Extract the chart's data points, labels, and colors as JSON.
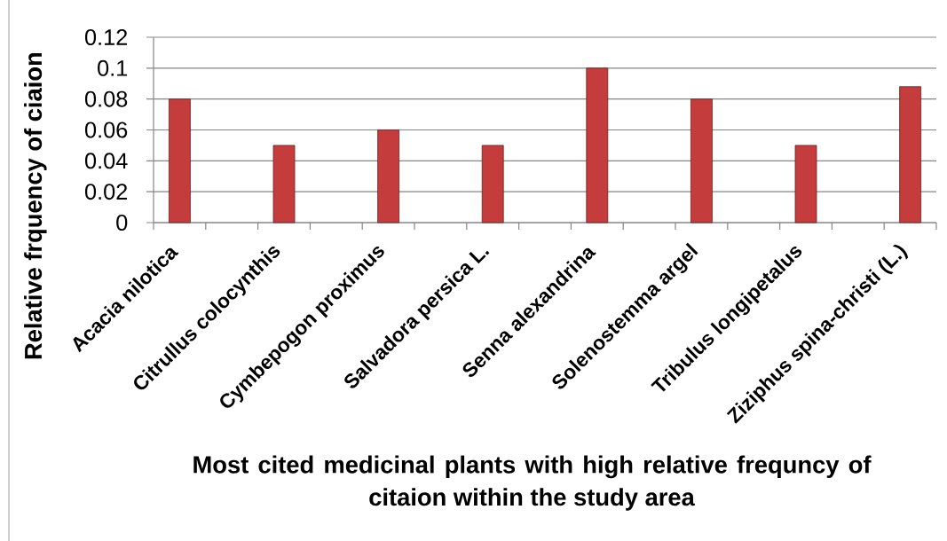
{
  "chart_data": {
    "type": "bar",
    "xlabel": "Most cited medicinal plants with high relative frequncy of citaion within the study area",
    "ylabel": "Relative frquency of ciaion",
    "categories": [
      "Acacia nilotica",
      null,
      "Citrullus colocynthis",
      null,
      "Cymbepogon proximus",
      null,
      "Salvadora persica L.",
      null,
      "Senna alexandrina",
      null,
      "Solenostemma argel",
      null,
      "Tribulus longipetalus",
      null,
      "Ziziphus spina-christi (L.)"
    ],
    "values": [
      0.08,
      null,
      0.05,
      null,
      0.06,
      null,
      0.05,
      null,
      0.1,
      null,
      0.08,
      null,
      0.05,
      null,
      0.088
    ],
    "color": "#c43c3c",
    "ylim": [
      0,
      0.12
    ],
    "yticks": [
      0,
      0.02,
      0.04,
      0.06,
      0.08,
      0.1,
      0.12
    ],
    "grid": "y"
  }
}
